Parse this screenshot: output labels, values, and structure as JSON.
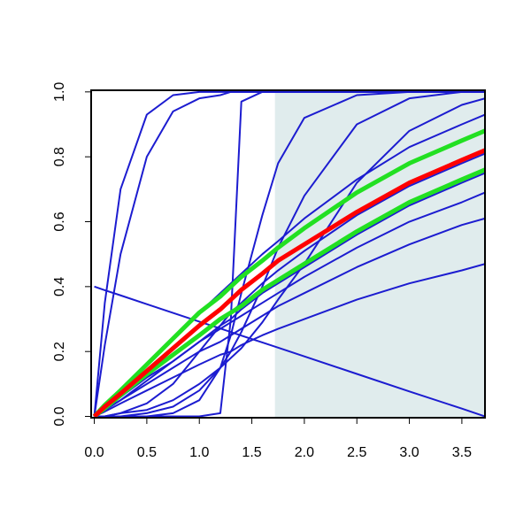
{
  "chart_data": {
    "type": "line",
    "x": [
      0,
      0.1,
      0.25,
      0.5,
      0.75,
      1.0,
      1.2,
      1.3,
      1.4,
      1.6,
      1.75,
      2.0,
      2.5,
      3.0,
      3.5,
      3.72
    ],
    "series": [
      {
        "color": "#1c1cd0",
        "values": [
          0,
          0.35,
          0.7,
          0.93,
          0.99,
          1,
          1,
          1,
          1,
          1,
          1,
          1,
          1,
          1,
          1,
          1
        ]
      },
      {
        "color": "#1c1cd0",
        "values": [
          0,
          0.22,
          0.5,
          0.8,
          0.94,
          0.98,
          0.99,
          1,
          1,
          1,
          1,
          1,
          1,
          1,
          1,
          1
        ]
      },
      {
        "color": "#1c1cd0",
        "values": [
          0,
          0,
          0,
          0,
          0,
          0,
          0.01,
          0.3,
          0.97,
          1,
          1,
          1,
          1,
          1,
          1,
          1
        ]
      },
      {
        "color": "#1c1cd0",
        "values": [
          0.4,
          0.389,
          0.373,
          0.346,
          0.319,
          0.292,
          0.271,
          0.26,
          0.249,
          0.228,
          0.212,
          0.185,
          0.131,
          0.077,
          0.024,
          0
        ]
      },
      {
        "color": "#1c1cd0",
        "values": [
          0,
          0,
          0,
          0,
          0.01,
          0.05,
          0.15,
          0.25,
          0.38,
          0.62,
          0.78,
          0.92,
          0.99,
          1,
          1,
          1
        ]
      },
      {
        "color": "#1c1cd0",
        "values": [
          0,
          0,
          0,
          0.01,
          0.03,
          0.08,
          0.15,
          0.2,
          0.26,
          0.4,
          0.52,
          0.68,
          0.9,
          0.98,
          1,
          1
        ]
      },
      {
        "color": "#1c1cd0",
        "values": [
          0,
          0,
          0.01,
          0.02,
          0.05,
          0.1,
          0.15,
          0.18,
          0.21,
          0.29,
          0.36,
          0.47,
          0.72,
          0.88,
          0.96,
          0.98
        ]
      },
      {
        "color": "#1c1cd0",
        "values": [
          0,
          0.03,
          0.08,
          0.16,
          0.24,
          0.32,
          0.38,
          0.41,
          0.44,
          0.5,
          0.54,
          0.61,
          0.73,
          0.83,
          0.9,
          0.93
        ]
      },
      {
        "color": "#1c1cd0",
        "values": [
          0,
          0.02,
          0.06,
          0.12,
          0.17,
          0.23,
          0.27,
          0.29,
          0.31,
          0.35,
          0.38,
          0.43,
          0.52,
          0.6,
          0.66,
          0.69
        ]
      },
      {
        "color": "#1c1cd0",
        "values": [
          0,
          0.02,
          0.05,
          0.1,
          0.15,
          0.2,
          0.23,
          0.25,
          0.27,
          0.31,
          0.34,
          0.38,
          0.46,
          0.53,
          0.59,
          0.61
        ]
      },
      {
        "color": "#1c1cd0",
        "values": [
          0,
          0.015,
          0.04,
          0.08,
          0.12,
          0.16,
          0.19,
          0.2,
          0.22,
          0.25,
          0.27,
          0.3,
          0.36,
          0.41,
          0.45,
          0.47
        ]
      },
      {
        "color": "#1c1cd0",
        "values": [
          0,
          0,
          0.01,
          0.04,
          0.1,
          0.2,
          0.28,
          0.32,
          0.35,
          0.41,
          0.45,
          0.51,
          0.62,
          0.71,
          0.78,
          0.81
        ]
      },
      {
        "color": "#1c1cd0",
        "values": [
          0,
          0.02,
          0.05,
          0.11,
          0.17,
          0.23,
          0.28,
          0.3,
          0.33,
          0.38,
          0.41,
          0.46,
          0.56,
          0.65,
          0.72,
          0.75
        ]
      },
      {
        "color": "#22e022",
        "highlight": true,
        "values": [
          0,
          0.035,
          0.08,
          0.16,
          0.24,
          0.32,
          0.37,
          0.4,
          0.43,
          0.48,
          0.52,
          0.58,
          0.69,
          0.78,
          0.85,
          0.88
        ]
      },
      {
        "color": "#22e022",
        "highlight": true,
        "values": [
          0,
          0.025,
          0.065,
          0.13,
          0.19,
          0.25,
          0.3,
          0.32,
          0.34,
          0.39,
          0.42,
          0.47,
          0.57,
          0.66,
          0.73,
          0.76
        ]
      },
      {
        "color": "#ff0000",
        "highlight": true,
        "values": [
          0,
          0.03,
          0.07,
          0.14,
          0.21,
          0.28,
          0.33,
          0.36,
          0.39,
          0.44,
          0.48,
          0.53,
          0.63,
          0.72,
          0.79,
          0.82
        ]
      }
    ],
    "shade": {
      "xrange": [
        1.72,
        3.72
      ],
      "color": "#e0eced"
    },
    "xlim": [
      -0.03,
      3.72
    ],
    "ylim": [
      -0.004,
      1.005
    ],
    "xticks": [
      {
        "value": 0,
        "label": "0.0"
      },
      0.5,
      {
        "value": 1,
        "label": "1.0"
      },
      1.5,
      {
        "value": 2,
        "label": "2.0"
      },
      2.5,
      {
        "value": 3,
        "label": "3.0"
      },
      3.5
    ],
    "yticks": [
      {
        "value": 0,
        "label": "0.0"
      },
      {
        "value": 0.2,
        "label": "0.2"
      },
      {
        "value": 0.4,
        "label": "0.4"
      },
      {
        "value": 0.6,
        "label": "0.6"
      },
      {
        "value": 0.8,
        "label": "0.8"
      },
      {
        "value": 1,
        "label": "1.0"
      }
    ]
  }
}
